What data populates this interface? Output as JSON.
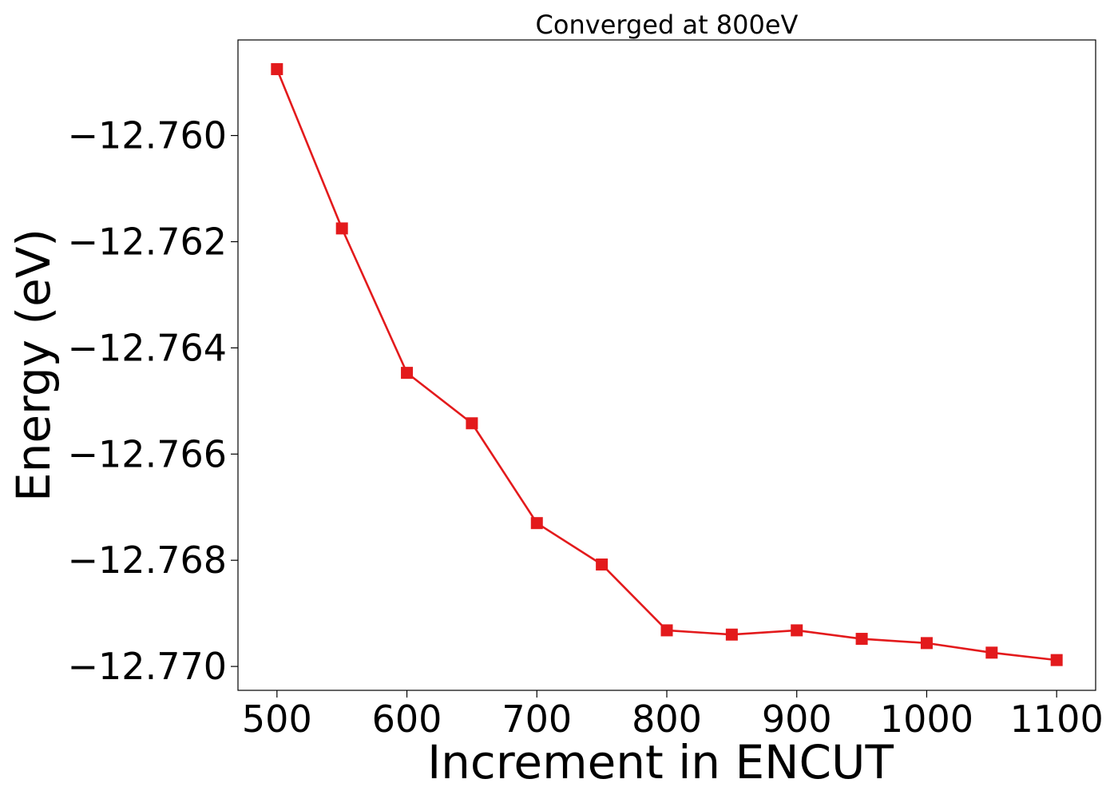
{
  "chart_data": {
    "type": "line",
    "title": "Converged at 800eV",
    "xlabel": "Increment in ENCUT",
    "ylabel": "Energy (eV)",
    "x": [
      500,
      550,
      600,
      650,
      700,
      750,
      800,
      850,
      900,
      950,
      1000,
      1050,
      1100
    ],
    "series": [
      {
        "values": [
          -12.75875,
          -12.76175,
          -12.76447,
          -12.76542,
          -12.7673,
          -12.76808,
          -12.76932,
          -12.7694,
          -12.76932,
          -12.76948,
          -12.76956,
          -12.76974,
          -12.76988
        ],
        "color": "#e31a1c",
        "marker": "square"
      }
    ],
    "xticks": [
      500,
      600,
      700,
      800,
      900,
      1000,
      1100
    ],
    "xtick_labels": [
      "500",
      "600",
      "700",
      "800",
      "900",
      "1000",
      "1100"
    ],
    "yticks": [
      -12.76,
      -12.762,
      -12.764,
      -12.766,
      -12.768,
      -12.77
    ],
    "ytick_labels": [
      "−12.760",
      "−12.762",
      "−12.764",
      "−12.766",
      "−12.768",
      "−12.770"
    ],
    "xlim": [
      470,
      1130
    ],
    "ylim": [
      -12.77045,
      -12.7582
    ],
    "grid": false,
    "legend": "none"
  }
}
